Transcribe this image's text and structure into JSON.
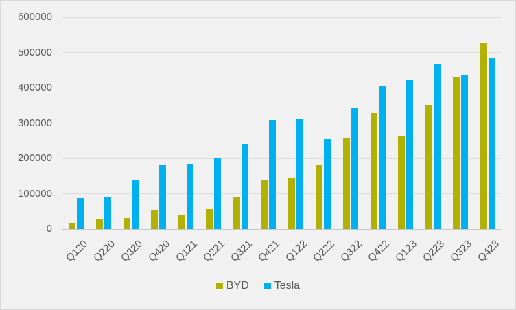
{
  "chart_data": {
    "type": "bar",
    "title": "",
    "xlabel": "",
    "ylabel": "",
    "categories": [
      "Q120",
      "Q220",
      "Q320",
      "Q420",
      "Q121",
      "Q221",
      "Q321",
      "Q421",
      "Q122",
      "Q222",
      "Q322",
      "Q422",
      "Q123",
      "Q223",
      "Q323",
      "Q423"
    ],
    "series": [
      {
        "name": "BYD",
        "color": "#b1b104",
        "values": [
          18000,
          27000,
          32000,
          54000,
          40000,
          56000,
          92000,
          137000,
          144000,
          181000,
          259000,
          329000,
          265000,
          352000,
          432000,
          526000
        ]
      },
      {
        "name": "Tesla",
        "color": "#00b0f0",
        "values": [
          88000,
          91000,
          140000,
          181000,
          185000,
          202000,
          241000,
          309000,
          311000,
          255000,
          344000,
          406000,
          423000,
          466000,
          435000,
          484000
        ]
      }
    ],
    "ylim": [
      0,
      600000
    ],
    "ytick_interval": 100000,
    "ytick_labels": [
      "0",
      "100000",
      "200000",
      "300000",
      "400000",
      "500000",
      "600000"
    ],
    "grid": "horizontal",
    "legend_position": "bottom",
    "colors": {
      "background": "#f1f1f1",
      "border": "#d9d9d9",
      "gridline": "#dcdcdc",
      "axis_line": "#c7c7c7",
      "text": "#595959"
    }
  }
}
